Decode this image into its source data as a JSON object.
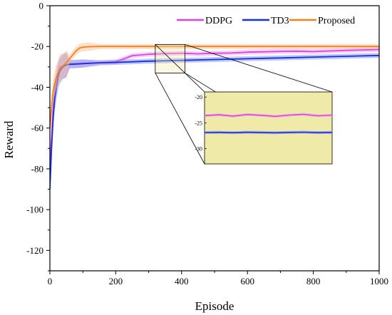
{
  "chart_data": {
    "type": "line",
    "title": "",
    "xlabel": "Episode",
    "ylabel": "Reward",
    "xlim": [
      0,
      1000
    ],
    "ylim": [
      -130,
      0
    ],
    "xticks": [
      0,
      200,
      400,
      600,
      800,
      1000
    ],
    "yticks": [
      0,
      -20,
      -40,
      -60,
      -80,
      -100,
      -120
    ],
    "grid": false,
    "legend_position": "top-right",
    "series": [
      {
        "name": "DDPG",
        "color": "#e040e0",
        "band_color": "#e8a8f0",
        "x": [
          0,
          5,
          10,
          15,
          20,
          25,
          30,
          40,
          50,
          60,
          80,
          100,
          150,
          200,
          250,
          300,
          350,
          400,
          450,
          500,
          550,
          600,
          650,
          700,
          750,
          800,
          850,
          900,
          950,
          1000
        ],
        "values": [
          -80,
          -65,
          -50,
          -42,
          -36,
          -33,
          -30,
          -29.5,
          -29,
          -28.5,
          -28.5,
          -28.3,
          -28,
          -27.5,
          -24.5,
          -23.8,
          -23.5,
          -23.3,
          -23.6,
          -23.3,
          -23.2,
          -22.8,
          -22.6,
          -22.4,
          -22.3,
          -22.5,
          -22.2,
          -21.9,
          -21.7,
          -21.5
        ]
      },
      {
        "name": "TD3",
        "color": "#1530e0",
        "band_color": "#8090f0",
        "x": [
          0,
          5,
          10,
          15,
          20,
          25,
          30,
          40,
          50,
          60,
          80,
          100,
          150,
          200,
          250,
          300,
          350,
          400,
          450,
          500,
          550,
          600,
          650,
          700,
          750,
          800,
          850,
          900,
          950,
          1000
        ],
        "values": [
          -90,
          -70,
          -55,
          -45,
          -40,
          -35,
          -32,
          -30,
          -29,
          -28.8,
          -28.6,
          -28.4,
          -28,
          -27.8,
          -27.5,
          -27.2,
          -27.0,
          -26.8,
          -26.6,
          -26.4,
          -26.2,
          -26.0,
          -25.8,
          -25.6,
          -25.4,
          -25.2,
          -25.0,
          -24.8,
          -24.6,
          -24.4
        ]
      },
      {
        "name": "Proposed",
        "color": "#f08020",
        "band_color": "#f8c090",
        "x": [
          0,
          5,
          10,
          15,
          20,
          25,
          30,
          40,
          50,
          60,
          70,
          80,
          90,
          100,
          120,
          150,
          200,
          300,
          400,
          500,
          600,
          700,
          800,
          900,
          1000
        ],
        "values": [
          -60,
          -50,
          -42,
          -38,
          -35,
          -33,
          -31,
          -29.5,
          -28,
          -26,
          -24,
          -22,
          -20.8,
          -20.3,
          -20.1,
          -20,
          -20,
          -20,
          -20,
          -20,
          -20,
          -20,
          -20,
          -20,
          -20
        ]
      }
    ],
    "inset": {
      "x_range": [
        320,
        410
      ],
      "y_range": [
        -33,
        -19
      ],
      "yticks": [
        -20,
        -25,
        -30
      ],
      "background": "#f0eaa8"
    }
  }
}
